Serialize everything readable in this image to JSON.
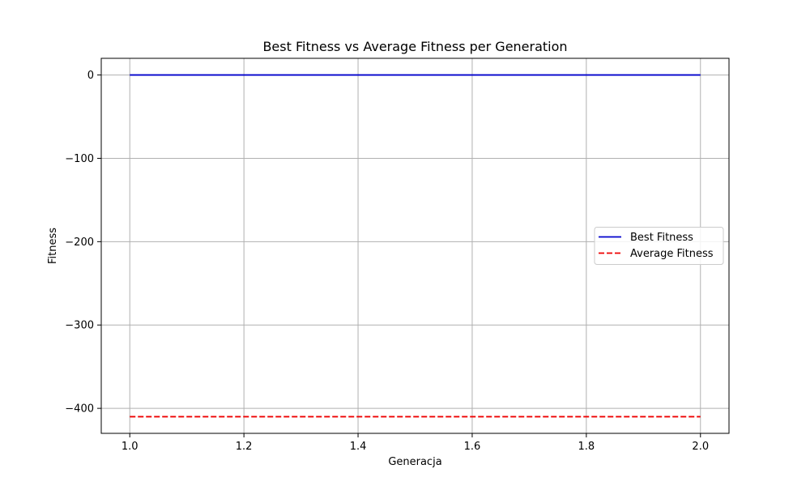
{
  "chart_data": {
    "type": "line",
    "title": "Best Fitness vs Average Fitness per Generation",
    "xlabel": "Generacja",
    "ylabel": "Fitness",
    "x": [
      1,
      2
    ],
    "xlim": [
      0.95,
      2.05
    ],
    "ylim": [
      -430,
      20
    ],
    "xticks": [
      1.0,
      1.2,
      1.4,
      1.6,
      1.8,
      2.0
    ],
    "xtick_labels": [
      "1.0",
      "1.2",
      "1.4",
      "1.6",
      "1.8",
      "2.0"
    ],
    "yticks": [
      0,
      -100,
      -200,
      -300,
      -400
    ],
    "ytick_labels": [
      "0",
      "−100",
      "−200",
      "−300",
      "−400"
    ],
    "grid": true,
    "legend_position": "center-right",
    "series": [
      {
        "name": "Best Fitness",
        "values": [
          0,
          0
        ],
        "color": "#0000cc",
        "style": "solid"
      },
      {
        "name": "Average Fitness",
        "values": [
          -410,
          -410
        ],
        "color": "#ee0000",
        "style": "dashed"
      }
    ]
  }
}
